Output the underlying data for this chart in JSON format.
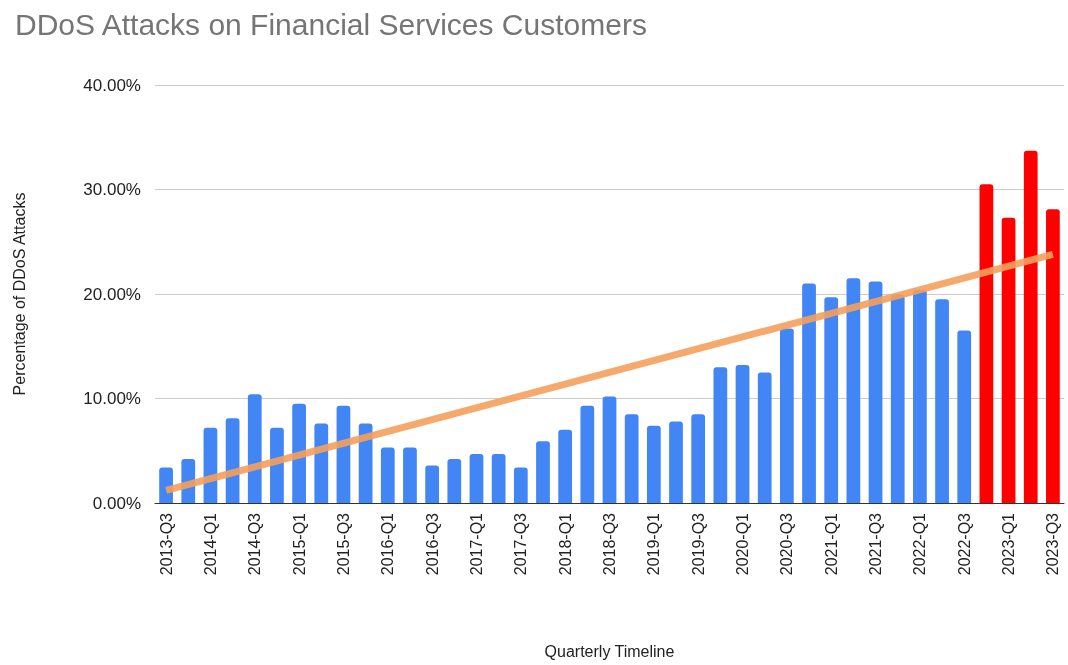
{
  "chart_data": {
    "type": "bar",
    "title": "DDoS Attacks on Financial Services Customers",
    "xlabel": "Quarterly Timeline",
    "ylabel": "Percentage of DDoS Attacks",
    "categories": [
      "2013-Q3",
      null,
      "2014-Q1",
      null,
      "2014-Q3",
      null,
      "2015-Q1",
      null,
      "2015-Q3",
      null,
      "2016-Q1",
      null,
      "2016-Q3",
      null,
      "2017-Q1",
      null,
      "2017-Q3",
      null,
      "2018-Q1",
      null,
      "2018-Q3",
      null,
      "2019-Q1",
      null,
      "2019-Q3",
      null,
      "2020-Q1",
      null,
      "2020-Q3",
      null,
      "2021-Q1",
      null,
      "2021-Q3",
      null,
      "2022-Q1",
      null,
      "2022-Q3",
      null,
      "2023-Q1",
      null,
      "2023-Q3"
    ],
    "series": [
      {
        "values": [
          3.4,
          4.2,
          7.2,
          8.1,
          10.4,
          7.2,
          9.5,
          7.6,
          9.3,
          7.6,
          5.3,
          5.3,
          3.6,
          4.2,
          4.7,
          4.7,
          3.4,
          5.9,
          7.0,
          9.3,
          10.2,
          8.5,
          7.4,
          7.8,
          8.5,
          13.0,
          13.2,
          12.5,
          16.7,
          21.0,
          19.7,
          21.5,
          21.2,
          19.9,
          20.4,
          19.5,
          16.5,
          30.5,
          27.3,
          33.7,
          28.1
        ],
        "colors": [
          "#4285f4",
          "#4285f4",
          "#4285f4",
          "#4285f4",
          "#4285f4",
          "#4285f4",
          "#4285f4",
          "#4285f4",
          "#4285f4",
          "#4285f4",
          "#4285f4",
          "#4285f4",
          "#4285f4",
          "#4285f4",
          "#4285f4",
          "#4285f4",
          "#4285f4",
          "#4285f4",
          "#4285f4",
          "#4285f4",
          "#4285f4",
          "#4285f4",
          "#4285f4",
          "#4285f4",
          "#4285f4",
          "#4285f4",
          "#4285f4",
          "#4285f4",
          "#4285f4",
          "#4285f4",
          "#4285f4",
          "#4285f4",
          "#4285f4",
          "#4285f4",
          "#4285f4",
          "#4285f4",
          "#4285f4",
          "#ff0000",
          "#ff0000",
          "#ff0000",
          "#ff0000"
        ]
      },
      {
        "type": "line",
        "color": "#f5a05c",
        "x": [
          "2013-Q3",
          "2023-Q3"
        ],
        "values": [
          1.2,
          23.8
        ]
      }
    ],
    "ylim": [
      0,
      40
    ],
    "yticks": [
      {
        "value": 0,
        "label": "0.00%"
      },
      {
        "value": 10,
        "label": "10.00%"
      },
      {
        "value": 20,
        "label": "20.00%"
      },
      {
        "value": 30,
        "label": "30.00%"
      },
      {
        "value": 40,
        "label": "40.00%"
      }
    ],
    "grid": "y",
    "marker": "none",
    "line_style": "solid"
  }
}
